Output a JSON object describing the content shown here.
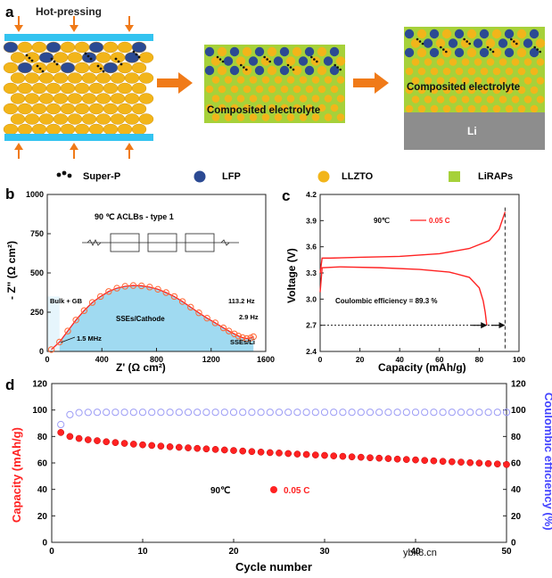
{
  "figure": {
    "panel_a": {
      "letter": "a",
      "process_label": "Hot-pressing",
      "composite_label_1": "Composited electrolyte",
      "composite_label_2": "Composited electrolyte",
      "li_label": "Li"
    },
    "legend": [
      {
        "label": "Super-P",
        "icon": "super-p-dots-icon",
        "color": "#111111"
      },
      {
        "label": "LFP",
        "icon": "lfp-circle-icon",
        "color": "#2b4a93"
      },
      {
        "label": "LLZTO",
        "icon": "llzto-circle-icon",
        "color": "#f2b51a"
      },
      {
        "label": "LiRAPs",
        "icon": "lirap-square-icon",
        "color": "#a6d13a"
      }
    ],
    "watermark": "ybx8.cn",
    "colors": {
      "cyan_bar": "#33c3f0",
      "arrow_orange": "#f07a18",
      "li_gray": "#8d8d8d",
      "fit_fill": "#8fd3ee",
      "red": "#ff2222",
      "blue": "#4444ff"
    }
  },
  "chart_data": [
    {
      "id": "b",
      "letter": "b",
      "type": "scatter",
      "title": "90 ℃    ACLBs - type 1",
      "xlabel": "Z' (Ω cm²)",
      "ylabel": "- Z\" (Ω cm²)",
      "xlim": [
        0,
        1600
      ],
      "ylim": [
        0,
        1000
      ],
      "xticks": [
        0,
        400,
        800,
        1200,
        1600
      ],
      "yticks": [
        0,
        250,
        500,
        750,
        1000
      ],
      "series": [
        {
          "name": "measured",
          "x": [
            30,
            90,
            150,
            210,
            270,
            330,
            390,
            450,
            510,
            570,
            630,
            690,
            750,
            810,
            870,
            930,
            990,
            1050,
            1110,
            1170,
            1230,
            1290,
            1330,
            1370,
            1400,
            1430,
            1460,
            1490,
            1510
          ],
          "y": [
            12,
            60,
            130,
            200,
            260,
            312,
            350,
            382,
            403,
            415,
            420,
            418,
            410,
            396,
            375,
            350,
            318,
            282,
            246,
            212,
            182,
            150,
            130,
            112,
            98,
            88,
            82,
            86,
            94
          ]
        }
      ],
      "annotations": [
        "Bulk + GB",
        "1.5 MHz",
        "SSEs/Cathode",
        "113.2 Hz",
        "2.9 Hz",
        "SSEs/Li"
      ]
    },
    {
      "id": "c",
      "letter": "c",
      "type": "line",
      "legend_condition": "90℃",
      "legend_label": "0.05 C",
      "xlabel": "Capacity (mAh/g)",
      "ylabel": "Voltage (V)",
      "xlim": [
        0,
        100
      ],
      "ylim": [
        2.4,
        4.2
      ],
      "xticks": [
        0,
        20,
        40,
        60,
        80,
        100
      ],
      "yticks": [
        2.4,
        2.7,
        3.0,
        3.3,
        3.6,
        3.9,
        4.2
      ],
      "series": [
        {
          "name": "charge",
          "x": [
            0,
            1,
            5,
            20,
            40,
            60,
            75,
            85,
            90,
            93
          ],
          "y": [
            3.3,
            3.47,
            3.47,
            3.48,
            3.49,
            3.52,
            3.58,
            3.67,
            3.8,
            4.0
          ]
        },
        {
          "name": "discharge",
          "x": [
            0,
            1,
            10,
            30,
            50,
            65,
            75,
            80,
            82,
            83,
            83.8
          ],
          "y": [
            3.08,
            3.36,
            3.37,
            3.36,
            3.34,
            3.31,
            3.25,
            3.13,
            2.98,
            2.85,
            2.7
          ]
        }
      ],
      "annotation": "Coulombic efficiency = 89.3 %"
    },
    {
      "id": "d",
      "letter": "d",
      "type": "scatter",
      "legend_condition": "90℃",
      "legend_label": "0.05 C",
      "xlabel": "Cycle number",
      "ylabel_left": "Capacity (mAh/g)",
      "ylabel_right": "Coulombic efficiency (%)",
      "xlim": [
        0,
        50
      ],
      "ylim": [
        0,
        120
      ],
      "xticks": [
        0,
        10,
        20,
        30,
        40,
        50
      ],
      "yticks": [
        0,
        20,
        40,
        60,
        80,
        100,
        120
      ],
      "capacity": [
        83,
        80,
        78.5,
        77.5,
        76.8,
        76,
        75.4,
        74.8,
        74.2,
        73.7,
        73.2,
        72.7,
        72.2,
        71.8,
        71.4,
        71,
        70.6,
        70.2,
        69.8,
        69.4,
        69,
        68.6,
        68.2,
        67.8,
        67.5,
        67.1,
        66.7,
        66.4,
        66,
        65.7,
        65.3,
        65,
        64.6,
        64.3,
        63.9,
        63.6,
        63.3,
        62.9,
        62.6,
        62.3,
        61.9,
        61.6,
        61.2,
        60.9,
        60.6,
        60.2,
        59.9,
        59.5,
        59.2,
        58.8
      ],
      "efficiency": [
        89,
        96.5,
        98,
        98.2,
        98.3,
        98.3,
        98.3,
        98.3,
        98.3,
        98.3,
        98.3,
        98.3,
        98.3,
        98.3,
        98.3,
        98.3,
        98.3,
        98.3,
        98.3,
        98.3,
        98.3,
        98.3,
        98.3,
        98.3,
        98.3,
        98.3,
        98.3,
        98.3,
        98.3,
        98.3,
        98.3,
        98.3,
        98.3,
        98.3,
        98.3,
        98.3,
        98.3,
        98.3,
        98.3,
        98.3,
        98.3,
        98.3,
        98.3,
        98.3,
        98.3,
        98.3,
        98.3,
        98.3,
        98.3,
        98.3
      ]
    }
  ]
}
